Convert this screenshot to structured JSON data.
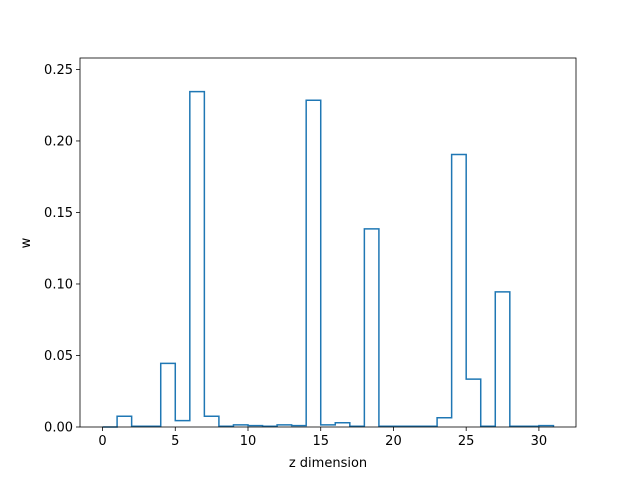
{
  "chart_data": {
    "type": "bar",
    "style": "step-histogram",
    "title": "",
    "xlabel": "z dimension",
    "ylabel": "w",
    "xlim": [
      -1.55,
      32.55
    ],
    "ylim": [
      0,
      0.258
    ],
    "grid": false,
    "x": [
      0,
      1,
      2,
      3,
      4,
      5,
      6,
      7,
      8,
      9,
      10,
      11,
      12,
      13,
      14,
      15,
      16,
      17,
      18,
      19,
      20,
      21,
      22,
      23,
      24,
      25,
      26,
      27,
      28,
      29,
      30
    ],
    "values": [
      0.0,
      0.0075,
      0.0005,
      0.0005,
      0.0445,
      0.0045,
      0.2345,
      0.0075,
      0.0005,
      0.0015,
      0.001,
      0.0005,
      0.0015,
      0.001,
      0.2285,
      0.0015,
      0.003,
      0.0005,
      0.1385,
      0.0005,
      0.0005,
      0.0005,
      0.0005,
      0.0065,
      0.1905,
      0.0335,
      0.0005,
      0.0945,
      0.0005,
      0.0005,
      0.001
    ],
    "xticks": [
      0,
      5,
      10,
      15,
      20,
      25,
      30
    ],
    "xtick_labels": [
      "0",
      "5",
      "10",
      "15",
      "20",
      "25",
      "30"
    ],
    "yticks": [
      0.0,
      0.05,
      0.1,
      0.15,
      0.2,
      0.25
    ],
    "ytick_labels": [
      "0.00",
      "0.05",
      "0.10",
      "0.15",
      "0.20",
      "0.25"
    ],
    "color": "#1f77b4"
  }
}
